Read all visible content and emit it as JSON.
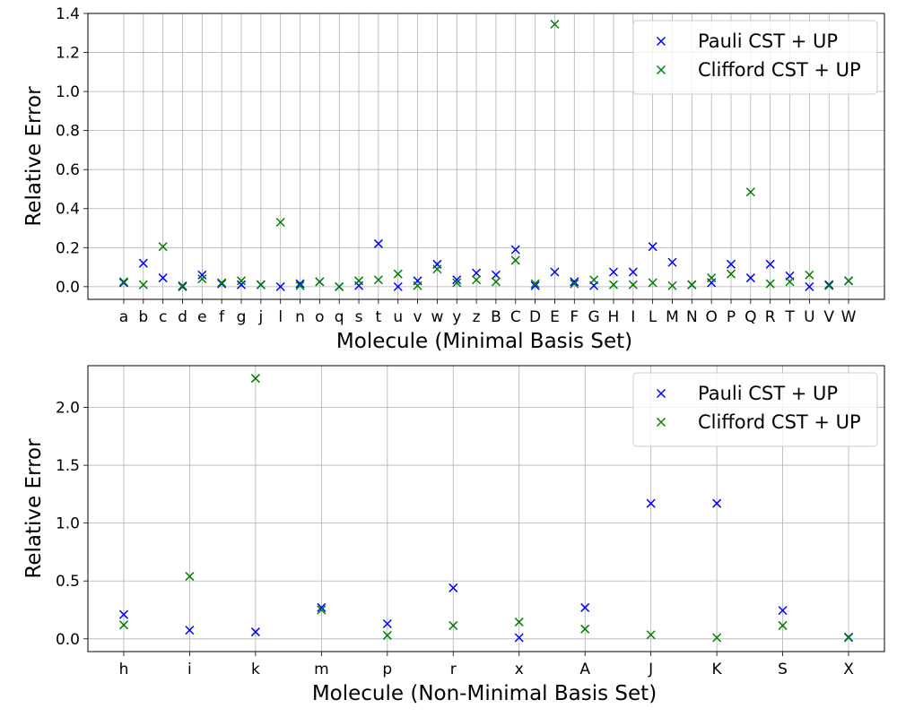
{
  "chart_data": [
    {
      "type": "scatter",
      "xlabel": "Molecule (Minimal Basis Set)",
      "ylabel": "Relative Error",
      "ylim": [
        -0.065,
        1.4
      ],
      "yticks": [
        0.0,
        0.2,
        0.4,
        0.6,
        0.8,
        1.0,
        1.2,
        1.4
      ],
      "ytick_labels": [
        "0.0",
        "0.2",
        "0.4",
        "0.6",
        "0.8",
        "1.0",
        "1.2",
        "1.4"
      ],
      "grid": true,
      "legend_position": "top-right",
      "categories": [
        "a",
        "b",
        "c",
        "d",
        "e",
        "f",
        "g",
        "j",
        "l",
        "n",
        "o",
        "q",
        "s",
        "t",
        "u",
        "v",
        "w",
        "y",
        "z",
        "B",
        "C",
        "D",
        "E",
        "F",
        "G",
        "H",
        "I",
        "L",
        "M",
        "N",
        "O",
        "P",
        "Q",
        "R",
        "T",
        "U",
        "V",
        "W"
      ],
      "series": [
        {
          "name": "Pauli CST + UP",
          "color": "#0000ff",
          "marker": "x",
          "values": [
            0.02,
            0.12,
            0.045,
            0.0,
            0.06,
            0.015,
            0.01,
            0.01,
            0.0,
            0.015,
            0.025,
            0.0,
            0.005,
            0.22,
            0.0,
            0.03,
            0.115,
            0.035,
            0.07,
            0.06,
            0.19,
            0.005,
            0.075,
            0.025,
            0.005,
            0.075,
            0.075,
            0.205,
            0.125,
            0.01,
            0.02,
            0.115,
            0.045,
            0.115,
            0.055,
            0.0,
            0.01,
            0.03
          ]
        },
        {
          "name": "Clifford CST + UP",
          "color": "#008000",
          "marker": "x",
          "values": [
            0.025,
            0.01,
            0.205,
            0.005,
            0.04,
            0.02,
            0.03,
            0.01,
            0.33,
            0.005,
            0.025,
            0.0,
            0.03,
            0.035,
            0.065,
            0.005,
            0.09,
            0.02,
            0.035,
            0.025,
            0.135,
            0.015,
            1.345,
            0.015,
            0.035,
            0.01,
            0.01,
            0.02,
            0.005,
            0.01,
            0.045,
            0.065,
            0.485,
            0.015,
            0.025,
            0.06,
            0.005,
            0.03
          ]
        }
      ]
    },
    {
      "type": "scatter",
      "xlabel": "Molecule (Non-Minimal Basis Set)",
      "ylabel": "Relative Error",
      "ylim": [
        -0.11,
        2.36
      ],
      "yticks": [
        0.0,
        0.5,
        1.0,
        1.5,
        2.0
      ],
      "ytick_labels": [
        "0.0",
        "0.5",
        "1.0",
        "1.5",
        "2.0"
      ],
      "grid": true,
      "legend_position": "top-right",
      "categories": [
        "h",
        "i",
        "k",
        "m",
        "p",
        "r",
        "x",
        "A",
        "J",
        "K",
        "S",
        "X"
      ],
      "series": [
        {
          "name": "Pauli CST + UP",
          "color": "#0000ff",
          "marker": "x",
          "values": [
            0.21,
            0.075,
            0.06,
            0.27,
            0.13,
            0.44,
            0.01,
            0.27,
            1.17,
            1.17,
            0.245,
            0.015
          ]
        },
        {
          "name": "Clifford CST + UP",
          "color": "#008000",
          "marker": "x",
          "values": [
            0.12,
            0.54,
            2.25,
            0.25,
            0.03,
            0.115,
            0.145,
            0.085,
            0.035,
            0.01,
            0.115,
            0.01
          ]
        }
      ]
    }
  ]
}
